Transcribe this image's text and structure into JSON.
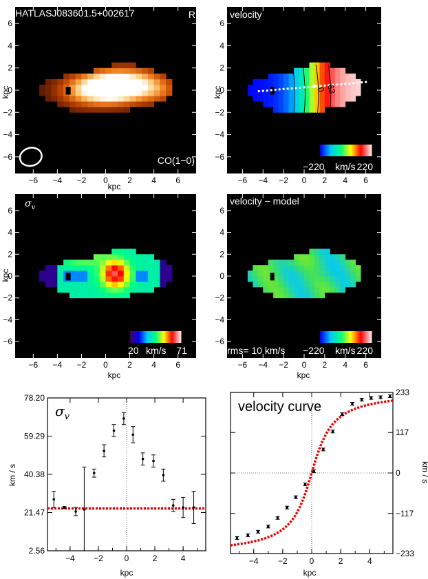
{
  "chart_data": [
    {
      "type": "heatmap",
      "title": "HATLASJ083601.5+002617",
      "corner_label": "R",
      "tracer_label": "CO(1−0)",
      "xlabel": "kpc",
      "ylabel": "kpc",
      "xlim": [
        -7.5,
        7.5
      ],
      "ylim": [
        -7.5,
        7.5
      ],
      "x_ticks": [
        "−6",
        "−4",
        "−2",
        "0",
        "2",
        "4",
        "6"
      ],
      "y_ticks": [
        "6",
        "4",
        "2",
        "0",
        "−2",
        "−4",
        "−6"
      ],
      "colors": [
        "#000000",
        "#5a1800",
        "#b84000",
        "#f08020",
        "#ffd080",
        "#ffffff"
      ]
    },
    {
      "type": "heatmap",
      "title": "velocity",
      "xlabel": "",
      "ylabel": "kpc",
      "xlim": [
        -7.5,
        7.5
      ],
      "ylim": [
        -7.5,
        7.5
      ],
      "x_ticks": [
        "−6",
        "−4",
        "−2",
        "0",
        "2",
        "4",
        "6"
      ],
      "y_ticks": [
        "6",
        "4",
        "2",
        "0",
        "−2",
        "−4",
        "−6"
      ],
      "contour_labels": [
        "63",
        "0"
      ],
      "colorbar": {
        "min_label": "−220",
        "unit": "km/s",
        "max_label": "220",
        "range": [
          -220,
          220
        ]
      },
      "colors": [
        "#0000ff",
        "#00c8ff",
        "#00ff80",
        "#ffff00",
        "#ff0000",
        "#ffe0e0"
      ]
    },
    {
      "type": "heatmap",
      "title": "σ",
      "title_sub": "v",
      "xlabel": "kpc",
      "ylabel": "kpc",
      "xlim": [
        -7.5,
        7.5
      ],
      "ylim": [
        -7.5,
        7.5
      ],
      "x_ticks": [
        "−6",
        "−4",
        "−2",
        "0",
        "2",
        "4",
        "6"
      ],
      "y_ticks": [
        "6",
        "4",
        "2",
        "0",
        "−2",
        "−4",
        "−6"
      ],
      "colorbar": {
        "min_label": "20",
        "unit": "km/s",
        "max_label": "71",
        "range": [
          20,
          71
        ]
      },
      "colors": [
        "#400060",
        "#0000ff",
        "#00c8ff",
        "#00ff80",
        "#ffff00",
        "#ff0000",
        "#ffe0e0"
      ]
    },
    {
      "type": "heatmap",
      "title": "velocity − model",
      "xlabel": "kpc",
      "ylabel": "",
      "xlim": [
        -7.5,
        7.5
      ],
      "ylim": [
        -7.5,
        7.5
      ],
      "x_ticks": [
        "−6",
        "−4",
        "−2",
        "0",
        "2",
        "4",
        "6"
      ],
      "y_ticks": [
        "6",
        "4",
        "2",
        "0",
        "−2",
        "−4",
        "−6"
      ],
      "rms_label": "rms= 10 km/s",
      "colorbar": {
        "min_label": "−220",
        "unit": "km/s",
        "max_label": "220",
        "range": [
          -220,
          220
        ]
      }
    },
    {
      "type": "scatter",
      "title": "σ",
      "title_sub": "v",
      "xlabel": "kpc",
      "ylabel": "km / s",
      "xlim": [
        -5.6,
        5.6
      ],
      "ylim": [
        2.56,
        78.2
      ],
      "x_ticks": [
        -4,
        -2,
        0,
        2,
        4
      ],
      "y_ticks": [
        "78.20",
        "59.29",
        "40.38",
        "21.47",
        "2.56"
      ],
      "y_tick_values": [
        78.2,
        59.29,
        40.38,
        21.47,
        2.56
      ],
      "floor_level": 23.5,
      "x": [
        -5.15,
        -4.4,
        -3.6,
        -3.0,
        -2.3,
        -1.6,
        -0.9,
        -0.2,
        0.45,
        1.15,
        1.9,
        2.6,
        3.3,
        4.0,
        4.75
      ],
      "y": [
        28,
        24,
        22,
        23,
        41,
        52,
        62,
        68,
        60,
        48,
        47,
        40,
        25,
        24,
        24
      ],
      "err": [
        4,
        0.5,
        2,
        21,
        2,
        3,
        3,
        3,
        4,
        3,
        3,
        3,
        3,
        5,
        8
      ]
    },
    {
      "type": "scatter",
      "title": "velocity curve",
      "xlabel": "kpc",
      "ylabel": "km / s",
      "xlim": [
        -5.6,
        5.6
      ],
      "ylim": [
        -233,
        233
      ],
      "x_ticks": [
        -4,
        -2,
        0,
        2,
        4
      ],
      "y_ticks": [
        "233",
        "117",
        "0",
        "−117",
        "−233"
      ],
      "y_tick_values": [
        233,
        117,
        0,
        -117,
        -233
      ],
      "x": [
        -5.15,
        -4.4,
        -3.7,
        -3.0,
        -2.35,
        -1.7,
        -1.1,
        -0.45,
        0.15,
        0.8,
        1.45,
        2.1,
        2.8,
        3.45,
        4.1,
        4.75,
        5.4
      ],
      "y": [
        -188,
        -180,
        -170,
        -155,
        -130,
        -100,
        -70,
        -33,
        5,
        68,
        120,
        170,
        200,
        212,
        217,
        219,
        222
      ],
      "model_vmax": 238,
      "model_rt": 1.4
    }
  ]
}
